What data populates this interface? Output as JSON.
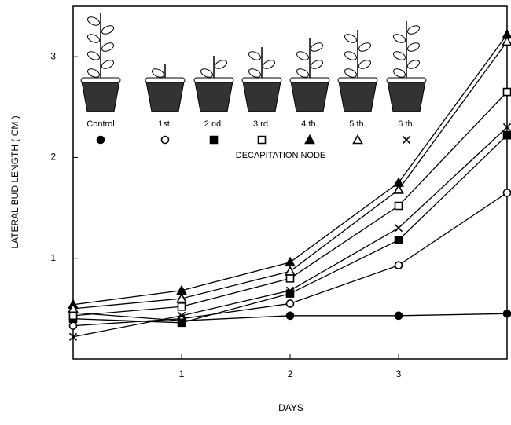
{
  "chart_data": {
    "type": "line",
    "y_label": "LATERAL  BUD  LENGTH  ( CM )",
    "x_label": "DAYS",
    "legend_title": "DECAPITATION NODE",
    "x": [
      0,
      1,
      2,
      3,
      4
    ],
    "xlim": [
      0,
      4
    ],
    "xticks": [
      1,
      2,
      3
    ],
    "ylim": [
      0,
      3.5
    ],
    "yticks": [
      1,
      2,
      3
    ],
    "series": [
      {
        "name": "Control",
        "color": "#000000",
        "marker": "filled-circle",
        "values": [
          0.46,
          0.38,
          0.43,
          0.43,
          0.45
        ]
      },
      {
        "name": "1st.",
        "color": "#000000",
        "marker": "open-circle",
        "values": [
          0.33,
          0.4,
          0.55,
          0.93,
          1.65
        ]
      },
      {
        "name": "2 nd.",
        "color": "#000000",
        "marker": "filled-square",
        "values": [
          0.4,
          0.36,
          0.65,
          1.18,
          2.22
        ]
      },
      {
        "name": "3 rd.",
        "color": "#000000",
        "marker": "open-square",
        "values": [
          0.43,
          0.52,
          0.8,
          1.52,
          2.65
        ]
      },
      {
        "name": "4 th.",
        "color": "#000000",
        "marker": "filled-triangle",
        "values": [
          0.54,
          0.68,
          0.96,
          1.75,
          3.22
        ]
      },
      {
        "name": "5 th.",
        "color": "#000000",
        "marker": "open-triangle",
        "values": [
          0.5,
          0.6,
          0.87,
          1.68,
          3.15
        ]
      },
      {
        "name": "6 th.",
        "color": "#000000",
        "marker": "cross",
        "values": [
          0.22,
          0.43,
          0.68,
          1.3,
          2.3
        ]
      }
    ]
  }
}
